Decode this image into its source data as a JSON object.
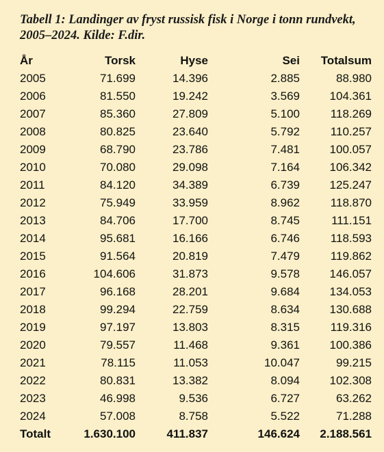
{
  "caption": "Tabell 1: Landinger av fryst russisk fisk i Norge i tonn rundvekt, 2005–2024. Kilde: F.dir.",
  "headers": {
    "year": "År",
    "torsk": "Torsk",
    "hyse": "Hyse",
    "sei": "Sei",
    "total": "Totalsum"
  },
  "rows": [
    {
      "year": "2005",
      "torsk": "71.699",
      "hyse": "14.396",
      "sei": "2.885",
      "total": "88.980"
    },
    {
      "year": "2006",
      "torsk": "81.550",
      "hyse": "19.242",
      "sei": "3.569",
      "total": "104.361"
    },
    {
      "year": "2007",
      "torsk": "85.360",
      "hyse": "27.809",
      "sei": "5.100",
      "total": "118.269"
    },
    {
      "year": "2008",
      "torsk": "80.825",
      "hyse": "23.640",
      "sei": "5.792",
      "total": "110.257"
    },
    {
      "year": "2009",
      "torsk": "68.790",
      "hyse": "23.786",
      "sei": "7.481",
      "total": "100.057"
    },
    {
      "year": "2010",
      "torsk": "70.080",
      "hyse": "29.098",
      "sei": "7.164",
      "total": "106.342"
    },
    {
      "year": "2011",
      "torsk": "84.120",
      "hyse": "34.389",
      "sei": "6.739",
      "total": "125.247"
    },
    {
      "year": "2012",
      "torsk": "75.949",
      "hyse": "33.959",
      "sei": "8.962",
      "total": "118.870"
    },
    {
      "year": "2013",
      "torsk": "84.706",
      "hyse": "17.700",
      "sei": "8.745",
      "total": "111.151"
    },
    {
      "year": "2014",
      "torsk": "95.681",
      "hyse": "16.166",
      "sei": "6.746",
      "total": "118.593"
    },
    {
      "year": "2015",
      "torsk": "91.564",
      "hyse": "20.819",
      "sei": "7.479",
      "total": "119.862"
    },
    {
      "year": "2016",
      "torsk": "104.606",
      "hyse": "31.873",
      "sei": "9.578",
      "total": "146.057"
    },
    {
      "year": "2017",
      "torsk": "96.168",
      "hyse": "28.201",
      "sei": "9.684",
      "total": "134.053"
    },
    {
      "year": "2018",
      "torsk": "99.294",
      "hyse": "22.759",
      "sei": "8.634",
      "total": "130.688"
    },
    {
      "year": "2019",
      "torsk": "97.197",
      "hyse": "13.803",
      "sei": "8.315",
      "total": "119.316"
    },
    {
      "year": "2020",
      "torsk": "79.557",
      "hyse": "11.468",
      "sei": "9.361",
      "total": "100.386"
    },
    {
      "year": "2021",
      "torsk": "78.115",
      "hyse": "11.053",
      "sei": "10.047",
      "total": "99.215"
    },
    {
      "year": "2022",
      "torsk": "80.831",
      "hyse": "13.382",
      "sei": "8.094",
      "total": "102.308"
    },
    {
      "year": "2023",
      "torsk": "46.998",
      "hyse": "9.536",
      "sei": "6.727",
      "total": "63.262"
    },
    {
      "year": "2024",
      "torsk": "57.008",
      "hyse": "8.758",
      "sei": "5.522",
      "total": "71.288"
    }
  ],
  "total": {
    "label": "Totalt",
    "torsk": "1.630.100",
    "hyse": "411.837",
    "sei": "146.624",
    "total": "2.188.561"
  },
  "colors": {
    "background": "#fbf0c9",
    "text": "#111111"
  }
}
